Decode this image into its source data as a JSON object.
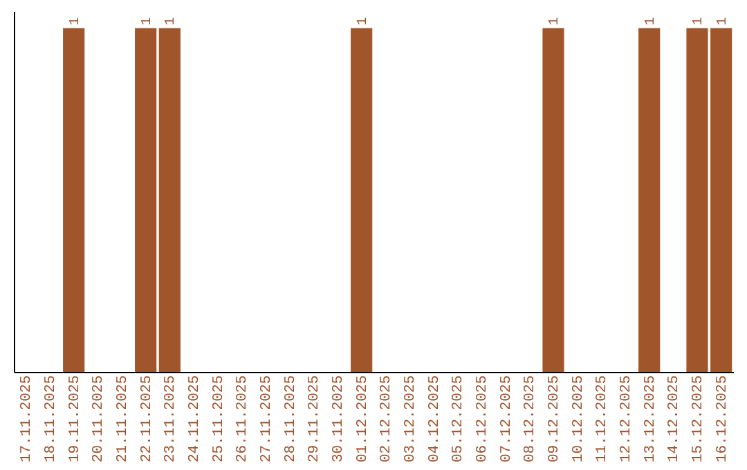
{
  "chart_data": {
    "type": "bar",
    "categories": [
      "17.11.2025",
      "18.11.2025",
      "19.11.2025",
      "20.11.2025",
      "21.11.2025",
      "22.11.2025",
      "23.11.2025",
      "24.11.2025",
      "25.11.2025",
      "26.11.2025",
      "27.11.2025",
      "28.11.2025",
      "29.11.2025",
      "30.11.2025",
      "01.12.2025",
      "02.12.2025",
      "03.12.2025",
      "04.12.2025",
      "05.12.2025",
      "06.12.2025",
      "07.12.2025",
      "08.12.2025",
      "09.12.2025",
      "10.12.2025",
      "11.12.2025",
      "12.12.2025",
      "13.12.2025",
      "14.12.2025",
      "15.12.2025",
      "16.12.2025"
    ],
    "values": [
      0,
      0,
      1,
      0,
      0,
      1,
      1,
      0,
      0,
      0,
      0,
      0,
      0,
      0,
      1,
      0,
      0,
      0,
      0,
      0,
      0,
      0,
      1,
      0,
      0,
      0,
      1,
      0,
      1,
      1
    ],
    "value_labels": [
      null,
      null,
      "1",
      null,
      null,
      "1",
      "1",
      null,
      null,
      null,
      null,
      null,
      null,
      null,
      "1",
      null,
      null,
      null,
      null,
      null,
      null,
      null,
      "1",
      null,
      null,
      null,
      "1",
      null,
      "1",
      "1"
    ],
    "color": "#a0562a",
    "ylim": [
      0,
      1.05
    ],
    "tick_labels": "x"
  }
}
